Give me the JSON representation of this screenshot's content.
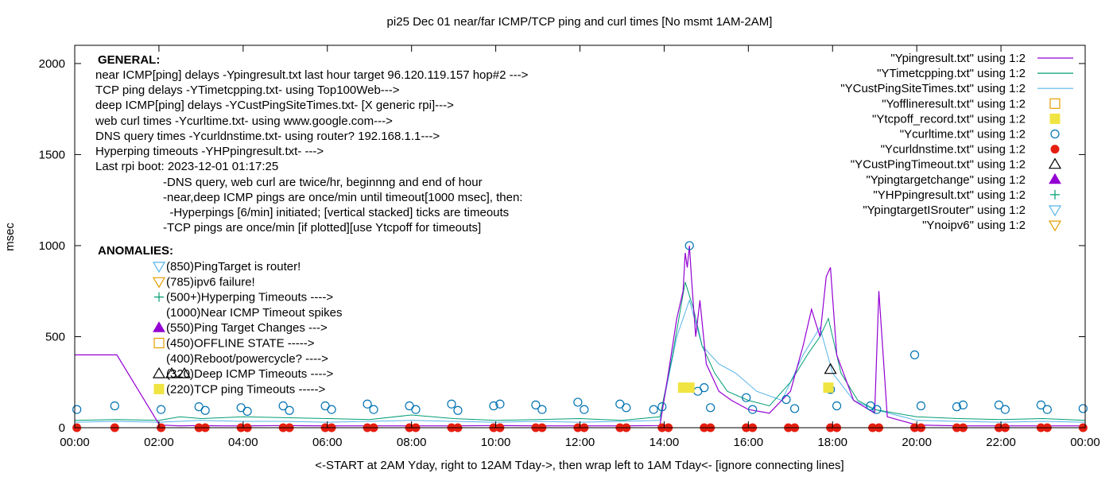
{
  "chart_data": {
    "type": "line",
    "title": "pi25 Dec 01  near/far ICMP/TCP ping and curl times [No msmt 1AM-2AM]",
    "xlabel": "<-START at 2AM Yday, right to 12AM Tday->, then wrap left to 1AM Tday<- [ignore connecting lines]",
    "ylabel": "msec",
    "xlim": [
      0,
      24
    ],
    "ylim": [
      0,
      2100
    ],
    "x_ticks": [
      "00:00",
      "02:00",
      "04:00",
      "06:00",
      "08:00",
      "10:00",
      "12:00",
      "14:00",
      "16:00",
      "18:00",
      "20:00",
      "22:00",
      "00:00"
    ],
    "y_ticks": [
      0,
      500,
      1000,
      1500,
      2000
    ],
    "legend": [
      {
        "label": "\"Ypingresult.txt\" using 1:2",
        "marker": "line",
        "color": "#9400d3"
      },
      {
        "label": "\"YTimetcpping.txt\" using 1:2",
        "marker": "line",
        "color": "#009e73"
      },
      {
        "label": "\"YCustPingSiteTimes.txt\" using 1:2",
        "marker": "line",
        "color": "#56b4e9"
      },
      {
        "label": "\"Yofflineresult.txt\" using 1:2",
        "marker": "open-square",
        "color": "#e69f00"
      },
      {
        "label": "\"Ytcpoff_record.txt\" using 1:2",
        "marker": "filled-square",
        "color": "#f0e442"
      },
      {
        "label": "\"Ycurltime.txt\" using 1:2",
        "marker": "open-circle",
        "color": "#0072b2"
      },
      {
        "label": "\"Ycurldnstime.txt\" using 1:2",
        "marker": "filled-circle",
        "color": "#e51e10"
      },
      {
        "label": "\"YCustPingTimeout.txt\" using 1:2",
        "marker": "open-triangle",
        "color": "#000000"
      },
      {
        "label": "\"Ypingtargetchange\" using 1:2",
        "marker": "filled-triangle",
        "color": "#9400d3"
      },
      {
        "label": "\"YHPpingresult.txt\" using 1:2",
        "marker": "plus",
        "color": "#009e73"
      },
      {
        "label": "\"YpingtargetISrouter\" using 1:2",
        "marker": "open-down-triangle",
        "color": "#56b4e9"
      },
      {
        "label": "\"Ynoipv6\" using 1:2",
        "marker": "open-down-triangle",
        "color": "#e69f00"
      }
    ],
    "general_heading": "GENERAL:",
    "general_lines": [
      "near ICMP[ping] delays -Ypingresult.txt last hour target 96.120.119.157 hop#2 --->",
      "TCP ping delays -YTimetcpping.txt- using Top100Web--->",
      "deep ICMP[ping] delays -YCustPingSiteTimes.txt- [X generic rpi]--->",
      "web curl times -Ycurltime.txt- using www.google.com--->",
      "DNS query times -Ycurldnstime.txt- using router? 192.168.1.1--->",
      "Hyperping timeouts -YHPpingresult.txt- --->",
      "Last rpi boot: 2023-12-01 01:17:25"
    ],
    "general_notes": [
      "-DNS query, web curl are twice/hr, beginnng and end of hour",
      "-near,deep ICMP pings are once/min until timeout[1000 msec], then:",
      "  -Hyperpings [6/min] initiated; [vertical stacked] ticks are timeouts",
      "-TCP pings are once/min [if plotted][use Ytcpoff for timeouts]"
    ],
    "anomalies_heading": "ANOMALIES:",
    "anomalies": [
      {
        "text": "(850)PingTarget is router!",
        "marker": "open-down-triangle",
        "color": "#56b4e9"
      },
      {
        "text": "(785)ipv6 failure!",
        "marker": "open-down-triangle",
        "color": "#e69f00"
      },
      {
        "text": "(500+)Hyperping Timeouts ---->",
        "marker": "plus",
        "color": "#009e73"
      },
      {
        "text": "(1000)Near ICMP Timeout spikes",
        "marker": "none",
        "color": "#000000"
      },
      {
        "text": "(550)Ping Target Changes --->",
        "marker": "filled-triangle",
        "color": "#9400d3"
      },
      {
        "text": "(450)OFFLINE STATE ----->",
        "marker": "open-square",
        "color": "#e69f00"
      },
      {
        "text": "(400)Reboot/powercycle? ---->",
        "marker": "none",
        "color": "#000000"
      },
      {
        "text": "(320)Deep ICMP Timeouts ---->",
        "marker": "triple-open-triangle",
        "color": "#000000"
      },
      {
        "text": "(220)TCP ping Timeouts ----->",
        "marker": "filled-square",
        "color": "#f0e442"
      }
    ],
    "series_ping_near": {
      "name": "Ypingresult.txt",
      "x": [
        0.0,
        1.0,
        1.0,
        1.0,
        2.0,
        2.0,
        2.5,
        2.9,
        3.5,
        4.0,
        5.0,
        6.0,
        7.0,
        8.0,
        9.0,
        10.0,
        11.0,
        12.0,
        13.0,
        13.9,
        14.1,
        14.3,
        14.45,
        14.5,
        14.55,
        14.6,
        14.65,
        14.75,
        14.85,
        15.0,
        15.3,
        15.6,
        16.0,
        16.5,
        17.0,
        17.3,
        17.5,
        17.7,
        17.85,
        17.95,
        18.1,
        18.5,
        19.0,
        19.1,
        19.3,
        20.0,
        21.0,
        22.0,
        23.0,
        24.0
      ],
      "y": [
        400,
        400,
        400,
        400,
        20,
        15,
        10,
        12,
        10,
        10,
        12,
        10,
        10,
        10,
        10,
        12,
        10,
        10,
        10,
        12,
        300,
        600,
        750,
        960,
        880,
        1000,
        820,
        500,
        700,
        350,
        200,
        150,
        100,
        80,
        200,
        450,
        650,
        500,
        830,
        880,
        400,
        150,
        80,
        750,
        60,
        15,
        10,
        10,
        10,
        10
      ]
    },
    "series_tcp": {
      "name": "YTimetcpping.txt",
      "x": [
        0,
        1,
        2,
        2.5,
        3,
        4,
        5,
        6,
        7,
        8,
        9,
        10,
        11,
        12,
        13,
        13.9,
        14.2,
        14.5,
        14.7,
        14.9,
        15.2,
        15.5,
        16.0,
        16.5,
        17.0,
        17.4,
        17.7,
        17.9,
        18.2,
        18.6,
        19.0,
        19.5,
        20.0,
        21.0,
        22.0,
        23.0,
        24.0
      ],
      "y": [
        40,
        45,
        40,
        60,
        50,
        60,
        55,
        50,
        45,
        70,
        50,
        40,
        45,
        50,
        40,
        60,
        400,
        800,
        650,
        450,
        300,
        200,
        150,
        120,
        250,
        400,
        500,
        600,
        300,
        150,
        100,
        80,
        60,
        50,
        45,
        50,
        40
      ]
    },
    "series_deep": {
      "name": "YCustPingSiteTimes.txt",
      "x": [
        0,
        1,
        2,
        3,
        4,
        5,
        6,
        7,
        8,
        9,
        10,
        11,
        12,
        13,
        13.9,
        14.3,
        14.6,
        14.9,
        15.3,
        15.7,
        16.2,
        16.8,
        17.3,
        17.7,
        18.0,
        18.5,
        19.0,
        20.0,
        21.0,
        22.0,
        23.0,
        24.0
      ],
      "y": [
        30,
        35,
        30,
        40,
        35,
        35,
        30,
        35,
        40,
        35,
        30,
        35,
        30,
        35,
        40,
        500,
        700,
        450,
        350,
        300,
        200,
        150,
        400,
        550,
        300,
        150,
        100,
        40,
        35,
        30,
        35,
        30
      ]
    },
    "curl_points": {
      "name": "Ycurltime.txt",
      "x": [
        0.05,
        0.95,
        2.05,
        2.95,
        3.1,
        3.95,
        4.1,
        4.95,
        5.1,
        5.95,
        6.1,
        6.95,
        7.1,
        7.95,
        8.1,
        8.95,
        9.1,
        9.95,
        10.1,
        10.95,
        11.1,
        11.95,
        12.1,
        12.95,
        13.1,
        13.75,
        13.95,
        14.6,
        14.8,
        14.95,
        15.1,
        15.95,
        16.1,
        16.9,
        17.1,
        17.95,
        18.1,
        18.9,
        19.05,
        19.95,
        20.1,
        20.95,
        21.1,
        21.95,
        22.1,
        22.95,
        23.1,
        23.95
      ],
      "y": [
        100,
        120,
        100,
        115,
        95,
        110,
        90,
        120,
        95,
        120,
        100,
        130,
        100,
        120,
        100,
        130,
        95,
        120,
        130,
        125,
        100,
        140,
        100,
        130,
        110,
        100,
        115,
        1000,
        200,
        220,
        110,
        165,
        100,
        155,
        105,
        210,
        120,
        120,
        100,
        400,
        120,
        115,
        125,
        125,
        100,
        125,
        100,
        105
      ]
    },
    "dns_points": {
      "name": "Ycurldnstime.txt",
      "x": [
        0.05,
        0.95,
        2.05,
        2.95,
        3.1,
        3.95,
        4.1,
        4.95,
        5.1,
        5.95,
        6.1,
        6.95,
        7.1,
        7.95,
        8.1,
        8.95,
        9.1,
        9.95,
        10.1,
        10.95,
        11.1,
        11.95,
        12.1,
        12.95,
        13.1,
        13.95,
        14.1,
        14.95,
        15.1,
        15.95,
        16.1,
        16.95,
        17.1,
        17.95,
        18.1,
        18.95,
        19.1,
        19.95,
        20.1,
        20.95,
        21.1,
        21.95,
        22.1,
        22.95,
        23.1,
        23.95
      ],
      "y": [
        0,
        0,
        0,
        0,
        0,
        0,
        0,
        0,
        0,
        0,
        0,
        0,
        0,
        0,
        0,
        0,
        0,
        0,
        0,
        0,
        0,
        0,
        0,
        0,
        0,
        0,
        0,
        0,
        0,
        0,
        0,
        0,
        0,
        0,
        0,
        0,
        0,
        0,
        0,
        0,
        0,
        0,
        0,
        0,
        0,
        0
      ]
    },
    "tcpoff_points": {
      "name": "Ytcpoff_record.txt",
      "x": [
        14.45,
        14.6,
        17.9
      ],
      "y": [
        220,
        220,
        220
      ]
    },
    "deep_timeout_points": {
      "name": "YCustPingTimeout.txt",
      "x": [
        17.95
      ],
      "y": [
        320
      ]
    }
  }
}
